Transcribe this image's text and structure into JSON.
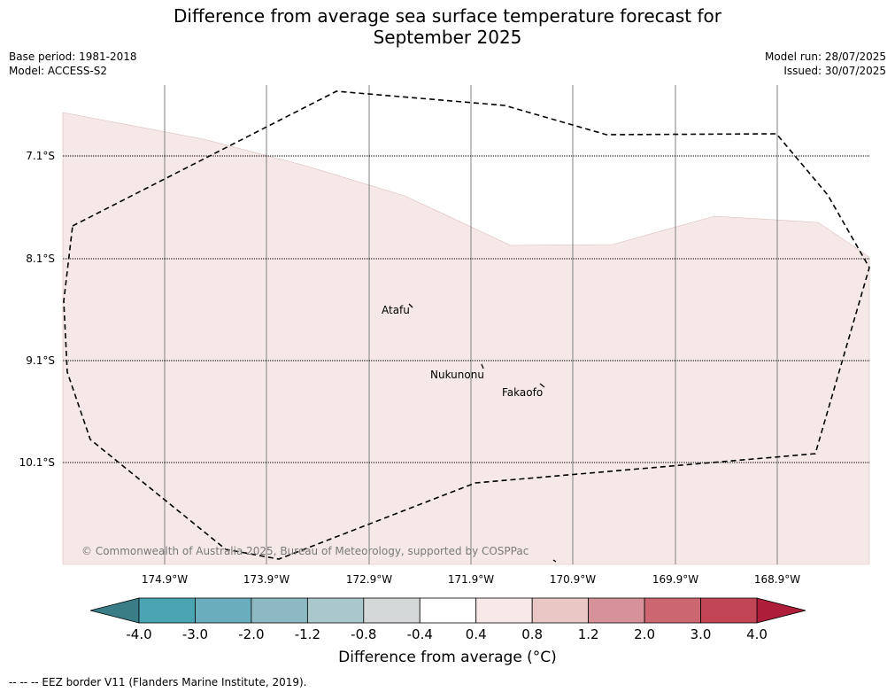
{
  "header": {
    "title_line1": "Difference from average sea surface temperature forecast for",
    "title_line2": "September 2025",
    "base_period": "Base period: 1981-2018",
    "model": "Model: ACCESS-S2",
    "model_run": "Model run: 28/07/2025",
    "issued": "Issued: 30/07/2025"
  },
  "map": {
    "lat_labels": [
      "7.1°S",
      "8.1°S",
      "9.1°S",
      "10.1°S"
    ],
    "lon_labels": [
      "174.9°W",
      "173.9°W",
      "172.9°W",
      "171.9°W",
      "170.9°W",
      "169.9°W",
      "168.9°W"
    ],
    "places": [
      "Atafu",
      "Nukunonu",
      "Fakaofo"
    ],
    "copyright": "© Commonwealth of Australia 2025, Bureau of Meteorology, supported by COSPPac",
    "colors": {
      "anomaly_fill": "#f5e8e7",
      "grid": "#808080",
      "eez": "#000000"
    }
  },
  "colorbar": {
    "ticks": [
      "-4.0",
      "-3.0",
      "-2.0",
      "-1.2",
      "-0.8",
      "-0.4",
      "0.4",
      "0.8",
      "1.2",
      "2.0",
      "3.0",
      "4.0"
    ],
    "colors": [
      "#4aa4b2",
      "#6aadbc",
      "#8cb9c2",
      "#aac8cb",
      "#d4d8d8",
      "#ffffff",
      "#f6e9e8",
      "#e9c7c4",
      "#d79198",
      "#cc6670",
      "#c14554"
    ],
    "low_extend_color": "#3a7d87",
    "high_extend_color": "#ae1e3b",
    "label": "Difference from average (°C)"
  },
  "footnote": "--  --  -- EEZ border V11 (Flanders Marine Institute, 2019)."
}
